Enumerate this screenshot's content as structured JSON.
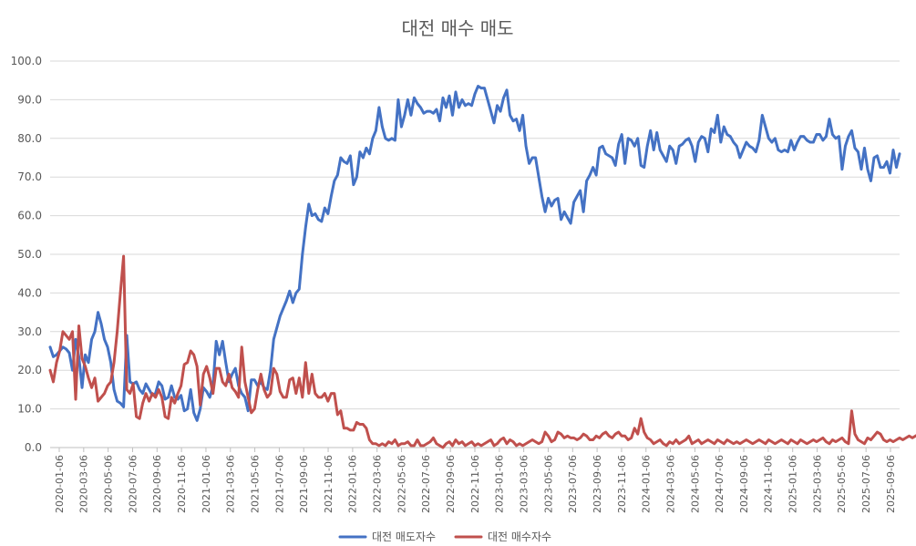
{
  "chart_data": {
    "type": "line",
    "title": "대전 매수 매도",
    "xlabel": "",
    "ylabel": "",
    "ylim": [
      0,
      100
    ],
    "y_ticks": [
      0,
      10,
      20,
      30,
      40,
      50,
      60,
      70,
      80,
      90,
      100
    ],
    "y_tick_labels": [
      "0.0",
      "10.0",
      "20.0",
      "30.0",
      "40.0",
      "50.0",
      "60.0",
      "70.0",
      "80.0",
      "90.0",
      "100.0"
    ],
    "x_tick_labels": [
      "2020-01-06",
      "2020-03-06",
      "2020-05-06",
      "2020-07-06",
      "2020-09-06",
      "2020-11-06",
      "2021-01-06",
      "2021-03-06",
      "2021-05-06",
      "2021-07-06",
      "2021-09-06",
      "2021-11-06",
      "2022-01-06",
      "2022-03-06",
      "2022-05-06",
      "2022-07-06",
      "2022-09-06",
      "2022-11-06",
      "2023-01-06",
      "2023-03-06",
      "2023-05-06",
      "2023-07-06",
      "2023-09-06",
      "2023-11-06",
      "2024-01-06",
      "2024-03-06",
      "2024-05-06",
      "2024-07-06",
      "2024-09-06",
      "2024-11-06",
      "2025-01-06",
      "2025-03-06",
      "2025-05-06",
      "2025-07-06",
      "2025-09-06"
    ],
    "grid": true,
    "legend": "bottom",
    "sample_interval": "approximately weekly",
    "series": [
      {
        "name": "대전 매도자수",
        "color": "#4472c4",
        "values": [
          26.0,
          23.5,
          24.0,
          25.0,
          26.0,
          25.5,
          24.5,
          20.0,
          28.0,
          23.5,
          15.5,
          24.0,
          22.0,
          28.0,
          30.0,
          35.0,
          32.0,
          28.0,
          26.0,
          22.0,
          15.0,
          12.0,
          11.5,
          10.5,
          29.0,
          17.0,
          16.5,
          17.0,
          15.0,
          14.0,
          16.5,
          15.0,
          13.5,
          14.0,
          17.0,
          16.0,
          12.5,
          13.0,
          16.0,
          13.0,
          12.5,
          13.5,
          9.5,
          10.0,
          15.0,
          9.0,
          7.0,
          10.0,
          15.5,
          14.5,
          13.0,
          16.0,
          27.5,
          24.0,
          27.5,
          22.0,
          17.0,
          19.0,
          20.5,
          16.0,
          14.0,
          13.0,
          9.5,
          17.5,
          17.5,
          16.0,
          17.0,
          15.5,
          15.0,
          20.0,
          28.0,
          31.0,
          34.0,
          36.0,
          38.0,
          40.5,
          37.5,
          40.0,
          41.0,
          50.0,
          57.0,
          63.0,
          60.0,
          60.5,
          59.0,
          58.5,
          62.0,
          60.5,
          65.0,
          69.0,
          70.5,
          75.0,
          74.0,
          73.5,
          75.5,
          68.0,
          70.0,
          76.5,
          75.0,
          77.5,
          76.0,
          80.0,
          82.0,
          88.0,
          83.0,
          80.0,
          79.5,
          80.0,
          79.5,
          90.0,
          83.0,
          86.0,
          90.0,
          86.0,
          90.5,
          89.0,
          88.0,
          86.5,
          87.0,
          87.0,
          86.5,
          87.5,
          84.5,
          90.5,
          88.0,
          91.0,
          86.0,
          92.0,
          88.0,
          90.0,
          88.5,
          89.0,
          88.5,
          91.5,
          93.5,
          93.0,
          93.0,
          90.0,
          87.0,
          84.0,
          88.5,
          87.0,
          90.5,
          92.5,
          86.0,
          84.5,
          85.0,
          82.0,
          86.0,
          78.0,
          73.5,
          75.0,
          75.0,
          70.0,
          65.0,
          61.0,
          64.5,
          62.5,
          64.0,
          64.5,
          59.0,
          61.0,
          59.5,
          58.0,
          63.5,
          65.0,
          66.5,
          61.0,
          69.0,
          70.5,
          72.5,
          70.5,
          77.5,
          78.0,
          76.0,
          75.5,
          75.0,
          73.0,
          78.5,
          81.0,
          73.5,
          80.0,
          79.5,
          78.0,
          80.0,
          73.0,
          72.5,
          78.0,
          82.0,
          77.0,
          81.5,
          77.0,
          75.5,
          74.0,
          78.0,
          77.0,
          73.5,
          78.0,
          78.5,
          79.5,
          80.0,
          78.0,
          74.0,
          79.0,
          80.5,
          80.0,
          76.5,
          82.5,
          81.5,
          86.0,
          79.0,
          83.0,
          81.0,
          80.5,
          79.0,
          78.0,
          75.0,
          77.0,
          79.0,
          78.0,
          77.5,
          76.5,
          79.5,
          86.0,
          83.0,
          80.0,
          79.0,
          80.0,
          77.0,
          76.5,
          77.0,
          76.5,
          79.5,
          77.0,
          79.0,
          80.5,
          80.5,
          79.5,
          79.0,
          79.0,
          81.0,
          81.0,
          79.5,
          80.5,
          85.0,
          81.0,
          80.0,
          80.5,
          72.0,
          78.0,
          80.5,
          82.0,
          77.5,
          76.5,
          72.0,
          77.5,
          72.0,
          69.0,
          75.0,
          75.5,
          72.5,
          72.5,
          74.0,
          71.0,
          77.0,
          72.5,
          76.0
        ]
      },
      {
        "name": "대전 매수자수",
        "color": "#c0504d",
        "values": [
          20.0,
          17.0,
          22.0,
          25.0,
          30.0,
          29.0,
          28.0,
          30.0,
          12.5,
          31.5,
          23.0,
          21.0,
          18.0,
          15.5,
          18.0,
          12.0,
          13.0,
          14.0,
          16.0,
          17.0,
          22.0,
          30.0,
          40.0,
          49.5,
          15.0,
          14.0,
          16.5,
          8.0,
          7.5,
          11.5,
          14.0,
          12.0,
          14.0,
          13.0,
          15.0,
          13.0,
          8.0,
          7.5,
          13.0,
          11.5,
          14.0,
          16.0,
          21.5,
          22.0,
          25.0,
          24.0,
          21.0,
          11.0,
          19.0,
          21.0,
          18.0,
          14.0,
          20.5,
          20.5,
          17.0,
          16.0,
          19.0,
          15.5,
          14.5,
          13.0,
          26.0,
          17.0,
          13.0,
          9.0,
          10.0,
          15.0,
          19.0,
          15.0,
          13.0,
          14.0,
          20.5,
          19.0,
          14.5,
          13.0,
          13.0,
          17.5,
          18.0,
          14.0,
          18.0,
          13.0,
          22.0,
          14.0,
          19.0,
          14.0,
          13.0,
          13.0,
          14.0,
          12.0,
          14.0,
          14.0,
          8.5,
          9.5,
          5.0,
          5.0,
          4.5,
          4.5,
          6.5,
          6.0,
          6.0,
          5.0,
          2.0,
          1.0,
          1.0,
          0.5,
          1.0,
          0.5,
          1.5,
          1.0,
          2.0,
          0.5,
          1.0,
          1.0,
          1.5,
          0.5,
          0.5,
          2.0,
          0.5,
          0.5,
          1.0,
          1.5,
          2.5,
          1.0,
          0.5,
          0.0,
          1.0,
          1.5,
          0.5,
          2.0,
          1.0,
          1.5,
          0.5,
          1.0,
          1.5,
          0.5,
          1.0,
          0.5,
          1.0,
          1.5,
          2.0,
          0.5,
          1.0,
          2.0,
          2.5,
          1.0,
          2.0,
          1.5,
          0.5,
          1.0,
          0.5,
          1.0,
          1.5,
          2.0,
          1.5,
          1.0,
          1.5,
          4.0,
          3.0,
          1.5,
          2.0,
          4.0,
          3.5,
          2.5,
          3.0,
          2.5,
          2.5,
          2.0,
          2.5,
          3.5,
          3.0,
          2.0,
          2.0,
          3.0,
          2.5,
          3.5,
          4.0,
          3.0,
          2.5,
          3.5,
          4.0,
          3.0,
          3.0,
          2.0,
          2.5,
          5.0,
          3.5,
          7.5,
          4.0,
          2.5,
          2.0,
          1.0,
          1.5,
          2.0,
          1.0,
          0.5,
          1.5,
          1.0,
          2.0,
          1.0,
          1.5,
          2.0,
          3.0,
          1.0,
          1.5,
          2.0,
          1.0,
          1.5,
          2.0,
          1.5,
          1.0,
          2.0,
          1.5,
          1.0,
          2.0,
          1.5,
          1.0,
          1.5,
          1.0,
          1.5,
          2.0,
          1.5,
          1.0,
          1.5,
          2.0,
          1.5,
          1.0,
          2.0,
          1.5,
          1.0,
          1.5,
          2.0,
          1.5,
          1.0,
          2.0,
          1.5,
          1.0,
          2.0,
          1.5,
          1.0,
          1.5,
          2.0,
          1.5,
          2.0,
          2.5,
          1.5,
          1.0,
          2.0,
          1.5,
          2.0,
          2.5,
          1.5,
          1.0,
          9.5,
          3.5,
          2.0,
          1.5,
          1.0,
          2.5,
          2.0,
          3.0,
          4.0,
          3.5,
          2.0,
          1.5,
          2.0,
          1.5,
          2.0,
          2.5,
          2.0,
          2.5,
          3.0,
          2.5,
          3.0,
          3.5
        ]
      }
    ]
  }
}
